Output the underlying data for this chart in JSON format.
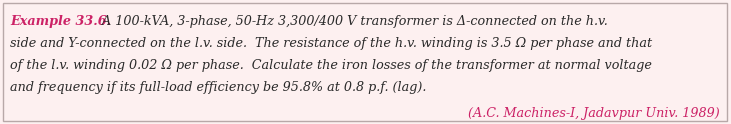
{
  "background_color": "#fdf0f0",
  "border_color": "#b8a8a8",
  "title_prefix": "Example 33.6.",
  "title_prefix_color": "#cc2266",
  "body_color": "#2a2a2a",
  "citation": "(A.C. Machines-I, Jadavpur Univ. 1989)",
  "citation_color": "#cc2266",
  "line1_bold": "Example 33.6.",
  "line1_rest": " A 100-kVA, 3-phase, 50-Hz 3,300/400 V transformer is Δ-connected on the h.v.",
  "line2": "side and Y-connected on the l.v. side.  The resistance of the h.v. winding is 3.5 Ω per phase and that",
  "line3": "of the l.v. winding 0.02 Ω per phase.  Calculate the iron losses of the transformer at normal voltage",
  "line4": "and frequency if its full-load efficiency be 95.8% at 0.8 p.f. (lag).",
  "font_size": 9.2,
  "figwidth": 7.31,
  "figheight": 1.24,
  "dpi": 100
}
